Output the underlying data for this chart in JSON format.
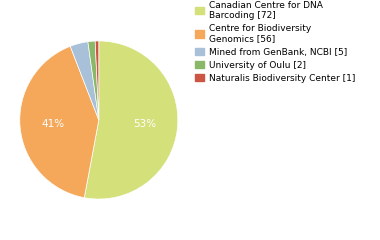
{
  "labels": [
    "Canadian Centre for DNA\nBarcoding [72]",
    "Centre for Biodiversity\nGenomics [56]",
    "Mined from GenBank, NCBI [5]",
    "University of Oulu [2]",
    "Naturalis Biodiversity Center [1]"
  ],
  "values": [
    72,
    56,
    5,
    2,
    1
  ],
  "colors": [
    "#d4e07a",
    "#f5a85a",
    "#a8c0d8",
    "#88b868",
    "#cc5544"
  ],
  "startangle": 90,
  "background_color": "#ffffff",
  "legend_fontsize": 6.5,
  "pct_fontsize": 7.5
}
